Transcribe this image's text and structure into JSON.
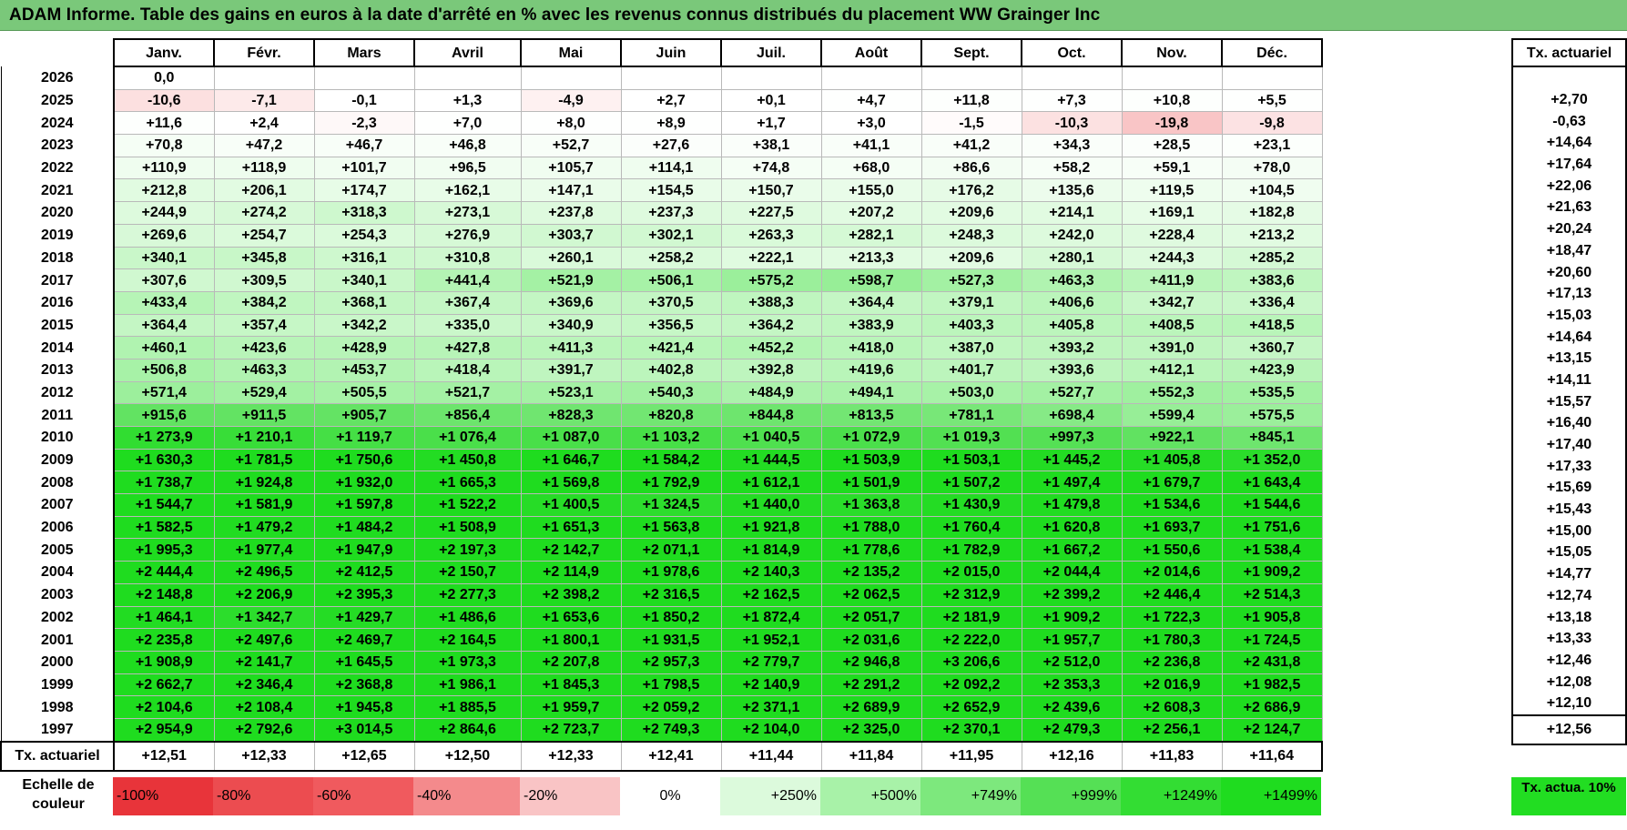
{
  "title": "ADAM Informe. Table des gains en euros à la date d'arrêté en % avec les revenus connus distribués du placement WW Grainger Inc",
  "chart_data": {
    "type": "table",
    "columns": [
      "Janv.",
      "Févr.",
      "Mars",
      "Avril",
      "Mai",
      "Juin",
      "Juil.",
      "Août",
      "Sept.",
      "Oct.",
      "Nov.",
      "Déc."
    ],
    "side_header": "Tx. actuariel",
    "rows": [
      {
        "year": "2026",
        "values": [
          "0,0",
          "",
          "",
          "",
          "",
          "",
          "",
          "",
          "",
          "",
          "",
          ""
        ],
        "rate": ""
      },
      {
        "year": "2025",
        "values": [
          "-10,6",
          "-7,1",
          "-0,1",
          "+1,3",
          "-4,9",
          "+2,7",
          "+0,1",
          "+4,7",
          "+11,8",
          "+7,3",
          "+10,8",
          "+5,5"
        ],
        "rate": "+2,70"
      },
      {
        "year": "2024",
        "values": [
          "+11,6",
          "+2,4",
          "-2,3",
          "+7,0",
          "+8,0",
          "+8,9",
          "+1,7",
          "+3,0",
          "-1,5",
          "-10,3",
          "-19,8",
          "-9,8"
        ],
        "rate": "-0,63"
      },
      {
        "year": "2023",
        "values": [
          "+70,8",
          "+47,2",
          "+46,7",
          "+46,8",
          "+52,7",
          "+27,6",
          "+38,1",
          "+41,1",
          "+41,2",
          "+34,3",
          "+28,5",
          "+23,1"
        ],
        "rate": "+14,64"
      },
      {
        "year": "2022",
        "values": [
          "+110,9",
          "+118,9",
          "+101,7",
          "+96,5",
          "+105,7",
          "+114,1",
          "+74,8",
          "+68,0",
          "+86,6",
          "+58,2",
          "+59,1",
          "+78,0"
        ],
        "rate": "+17,64"
      },
      {
        "year": "2021",
        "values": [
          "+212,8",
          "+206,1",
          "+174,7",
          "+162,1",
          "+147,1",
          "+154,5",
          "+150,7",
          "+155,0",
          "+176,2",
          "+135,6",
          "+119,5",
          "+104,5"
        ],
        "rate": "+22,06"
      },
      {
        "year": "2020",
        "values": [
          "+244,9",
          "+274,2",
          "+318,3",
          "+273,1",
          "+237,8",
          "+237,3",
          "+227,5",
          "+207,2",
          "+209,6",
          "+214,1",
          "+169,1",
          "+182,8"
        ],
        "rate": "+21,63"
      },
      {
        "year": "2019",
        "values": [
          "+269,6",
          "+254,7",
          "+254,3",
          "+276,9",
          "+303,7",
          "+302,1",
          "+263,3",
          "+282,1",
          "+248,3",
          "+242,0",
          "+228,4",
          "+213,2"
        ],
        "rate": "+20,24"
      },
      {
        "year": "2018",
        "values": [
          "+340,1",
          "+345,8",
          "+316,1",
          "+310,8",
          "+260,1",
          "+258,2",
          "+222,1",
          "+213,3",
          "+209,6",
          "+280,1",
          "+244,3",
          "+285,2"
        ],
        "rate": "+18,47"
      },
      {
        "year": "2017",
        "values": [
          "+307,6",
          "+309,5",
          "+340,1",
          "+441,4",
          "+521,9",
          "+506,1",
          "+575,2",
          "+598,7",
          "+527,3",
          "+463,3",
          "+411,9",
          "+383,6"
        ],
        "rate": "+20,60"
      },
      {
        "year": "2016",
        "values": [
          "+433,4",
          "+384,2",
          "+368,1",
          "+367,4",
          "+369,6",
          "+370,5",
          "+388,3",
          "+364,4",
          "+379,1",
          "+406,6",
          "+342,7",
          "+336,4"
        ],
        "rate": "+17,13"
      },
      {
        "year": "2015",
        "values": [
          "+364,4",
          "+357,4",
          "+342,2",
          "+335,0",
          "+340,9",
          "+356,5",
          "+364,2",
          "+383,9",
          "+403,3",
          "+405,8",
          "+408,5",
          "+418,5"
        ],
        "rate": "+15,03"
      },
      {
        "year": "2014",
        "values": [
          "+460,1",
          "+423,6",
          "+428,9",
          "+427,8",
          "+411,3",
          "+421,4",
          "+452,2",
          "+418,0",
          "+387,0",
          "+393,2",
          "+391,0",
          "+360,7"
        ],
        "rate": "+14,64"
      },
      {
        "year": "2013",
        "values": [
          "+506,8",
          "+463,3",
          "+453,7",
          "+418,4",
          "+391,7",
          "+402,8",
          "+392,8",
          "+419,6",
          "+401,7",
          "+393,6",
          "+412,1",
          "+423,9"
        ],
        "rate": "+13,15"
      },
      {
        "year": "2012",
        "values": [
          "+571,4",
          "+529,4",
          "+505,5",
          "+521,7",
          "+523,1",
          "+540,3",
          "+484,9",
          "+494,1",
          "+503,0",
          "+527,7",
          "+552,3",
          "+535,5"
        ],
        "rate": "+14,11"
      },
      {
        "year": "2011",
        "values": [
          "+915,6",
          "+911,5",
          "+905,7",
          "+856,4",
          "+828,3",
          "+820,8",
          "+844,8",
          "+813,5",
          "+781,1",
          "+698,4",
          "+599,4",
          "+575,5"
        ],
        "rate": "+15,57"
      },
      {
        "year": "2010",
        "values": [
          "+1 273,9",
          "+1 210,1",
          "+1 119,7",
          "+1 076,4",
          "+1 087,0",
          "+1 103,2",
          "+1 040,5",
          "+1 072,9",
          "+1 019,3",
          "+997,3",
          "+922,1",
          "+845,1"
        ],
        "rate": "+16,40"
      },
      {
        "year": "2009",
        "values": [
          "+1 630,3",
          "+1 781,5",
          "+1 750,6",
          "+1 450,8",
          "+1 646,7",
          "+1 584,2",
          "+1 444,5",
          "+1 503,9",
          "+1 503,1",
          "+1 445,2",
          "+1 405,8",
          "+1 352,0"
        ],
        "rate": "+17,40"
      },
      {
        "year": "2008",
        "values": [
          "+1 738,7",
          "+1 924,8",
          "+1 932,0",
          "+1 665,3",
          "+1 569,8",
          "+1 792,9",
          "+1 612,1",
          "+1 501,9",
          "+1 507,2",
          "+1 497,4",
          "+1 679,7",
          "+1 643,4"
        ],
        "rate": "+17,33"
      },
      {
        "year": "2007",
        "values": [
          "+1 544,7",
          "+1 581,9",
          "+1 597,8",
          "+1 522,2",
          "+1 400,5",
          "+1 324,5",
          "+1 440,0",
          "+1 363,8",
          "+1 430,9",
          "+1 479,8",
          "+1 534,6",
          "+1 544,6"
        ],
        "rate": "+15,69"
      },
      {
        "year": "2006",
        "values": [
          "+1 582,5",
          "+1 479,2",
          "+1 484,2",
          "+1 508,9",
          "+1 651,3",
          "+1 563,8",
          "+1 921,8",
          "+1 788,0",
          "+1 760,4",
          "+1 620,8",
          "+1 693,7",
          "+1 751,6"
        ],
        "rate": "+15,43"
      },
      {
        "year": "2005",
        "values": [
          "+1 995,3",
          "+1 977,4",
          "+1 947,9",
          "+2 197,3",
          "+2 142,7",
          "+2 071,1",
          "+1 814,9",
          "+1 778,6",
          "+1 782,9",
          "+1 667,2",
          "+1 550,6",
          "+1 538,4"
        ],
        "rate": "+15,00"
      },
      {
        "year": "2004",
        "values": [
          "+2 444,4",
          "+2 496,5",
          "+2 412,5",
          "+2 150,7",
          "+2 114,9",
          "+1 978,6",
          "+2 140,3",
          "+2 135,2",
          "+2 015,0",
          "+2 044,4",
          "+2 014,6",
          "+1 909,2"
        ],
        "rate": "+15,05"
      },
      {
        "year": "2003",
        "values": [
          "+2 148,8",
          "+2 206,9",
          "+2 395,3",
          "+2 277,3",
          "+2 398,2",
          "+2 316,5",
          "+2 162,5",
          "+2 062,5",
          "+2 312,9",
          "+2 399,2",
          "+2 446,4",
          "+2 514,3"
        ],
        "rate": "+14,77"
      },
      {
        "year": "2002",
        "values": [
          "+1 464,1",
          "+1 342,7",
          "+1 429,7",
          "+1 486,6",
          "+1 653,6",
          "+1 850,2",
          "+1 872,4",
          "+2 051,7",
          "+2 181,9",
          "+1 909,2",
          "+1 722,3",
          "+1 905,8"
        ],
        "rate": "+12,74"
      },
      {
        "year": "2001",
        "values": [
          "+2 235,8",
          "+2 497,6",
          "+2 469,7",
          "+2 164,5",
          "+1 800,1",
          "+1 931,5",
          "+1 952,1",
          "+2 031,6",
          "+2 222,0",
          "+1 957,7",
          "+1 780,3",
          "+1 724,5"
        ],
        "rate": "+13,18"
      },
      {
        "year": "2000",
        "values": [
          "+1 908,9",
          "+2 141,7",
          "+1 645,5",
          "+1 973,3",
          "+2 207,8",
          "+2 957,3",
          "+2 779,7",
          "+2 946,8",
          "+3 206,6",
          "+2 512,0",
          "+2 236,8",
          "+2 431,8"
        ],
        "rate": "+13,33"
      },
      {
        "year": "1999",
        "values": [
          "+2 662,7",
          "+2 346,4",
          "+2 368,8",
          "+1 986,1",
          "+1 845,3",
          "+1 798,5",
          "+2 140,9",
          "+2 291,2",
          "+2 092,2",
          "+2 353,3",
          "+2 016,9",
          "+1 982,5"
        ],
        "rate": "+12,46"
      },
      {
        "year": "1998",
        "values": [
          "+2 104,6",
          "+2 108,4",
          "+1 945,8",
          "+1 885,5",
          "+1 959,7",
          "+2 059,2",
          "+2 371,1",
          "+2 689,9",
          "+2 652,9",
          "+2 439,6",
          "+2 608,3",
          "+2 686,9"
        ],
        "rate": "+12,08"
      },
      {
        "year": "1997",
        "values": [
          "+2 954,9",
          "+2 792,6",
          "+3 014,5",
          "+2 864,6",
          "+2 723,7",
          "+2 749,3",
          "+2 104,0",
          "+2 325,0",
          "+2 370,1",
          "+2 479,3",
          "+2 256,1",
          "+2 124,7"
        ],
        "rate": "+12,10"
      }
    ],
    "totals_row": {
      "label": "Tx. actuariel",
      "values": [
        "+12,51",
        "+12,33",
        "+12,65",
        "+12,50",
        "+12,33",
        "+12,41",
        "+11,44",
        "+11,84",
        "+11,95",
        "+12,16",
        "+11,83",
        "+11,64"
      ],
      "rate": "+12,56"
    },
    "color_scale": {
      "label": "Echelle de couleur",
      "stops": [
        {
          "label": "-100%",
          "color": "#e8343a"
        },
        {
          "label": "-80%",
          "color": "#ec4c50"
        },
        {
          "label": "-60%",
          "color": "#f05a5e"
        },
        {
          "label": "-40%",
          "color": "#f48a8c"
        },
        {
          "label": "-20%",
          "color": "#f9c4c5"
        },
        {
          "label": "0%",
          "color": "#ffffff"
        },
        {
          "label": "+250%",
          "color": "#dcfadc"
        },
        {
          "label": "+500%",
          "color": "#a8f2a8"
        },
        {
          "label": "+749%",
          "color": "#7de87d"
        },
        {
          "label": "+999%",
          "color": "#55e055"
        },
        {
          "label": "+1249%",
          "color": "#33dd33"
        },
        {
          "label": "+1499%",
          "color": "#1fdc1f"
        }
      ],
      "target_label": "Tx. actua. 10%",
      "target_color": "#22dd22"
    }
  }
}
